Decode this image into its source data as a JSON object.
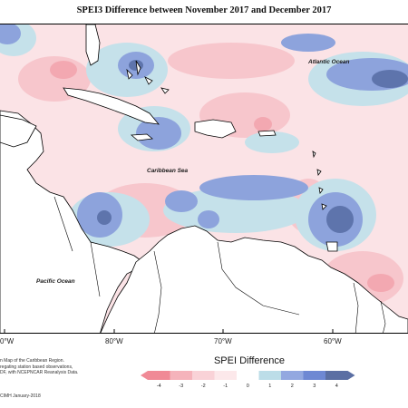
{
  "title": "SPEI3 Difference between November 2017 and December 2017",
  "map": {
    "labels": {
      "atlantic": "Atlantic Ocean",
      "caribbean": "Caribbean Sea",
      "pacific": "Pacific Ocean"
    },
    "longitude_labels": [
      "0°W",
      "80°W",
      "70°W",
      "60°W"
    ]
  },
  "footer": {
    "lines": [
      "n Map of the Caribbean Region.",
      "regating station based observations,",
      "DF, with NCEPNCAR Reanalysis Data."
    ],
    "credit": "CIMH January-2018"
  },
  "legend": {
    "title": "SPEI Difference",
    "ticks": [
      "-4",
      "-3",
      "-2",
      "-1",
      "0",
      "1",
      "2",
      "3",
      "4"
    ],
    "colors": [
      "#f08a96",
      "#f5b3bb",
      "#f9d2d7",
      "#fce8ea",
      "#ffffff",
      "#bcdde8",
      "#93a8e0",
      "#6e88d3",
      "#5b6fa3"
    ]
  }
}
